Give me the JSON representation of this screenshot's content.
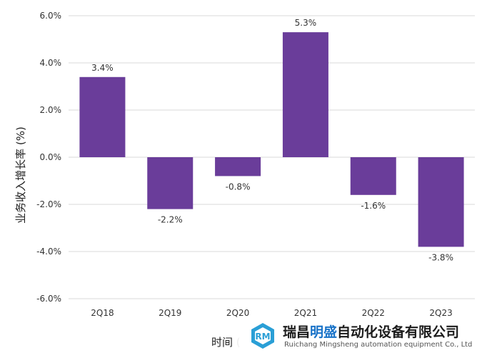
{
  "chart_data": {
    "type": "bar",
    "categories": [
      "2Q18",
      "2Q19",
      "2Q20",
      "2Q21",
      "2Q22",
      "2Q23"
    ],
    "values": [
      3.4,
      -2.2,
      -0.8,
      5.3,
      -1.6,
      -3.8
    ],
    "data_labels": [
      "3.4%",
      "-2.2%",
      "-0.8%",
      "5.3%",
      "-1.6%",
      "-3.8%"
    ],
    "y_ticks": [
      6,
      4,
      2,
      0,
      -2,
      -4,
      -6
    ],
    "y_tick_labels": [
      "6.0%",
      "4.0%",
      "2.0%",
      "0.0%",
      "-2.0%",
      "-4.0%",
      "-6.0%"
    ],
    "ylim": [
      -6,
      6
    ],
    "ylabel": "业务收入增长率 (%)",
    "xlabel": "时间 (",
    "grid": true,
    "bar_color": "#6a3d9a"
  },
  "watermark": {
    "name_part1": "瑞昌",
    "name_highlight": "明盛",
    "name_part2": "自动化设备有限公司",
    "english": "Ruichang Mingsheng automation equipment Co., Ltd",
    "highlight_color": "#1a73c8"
  }
}
